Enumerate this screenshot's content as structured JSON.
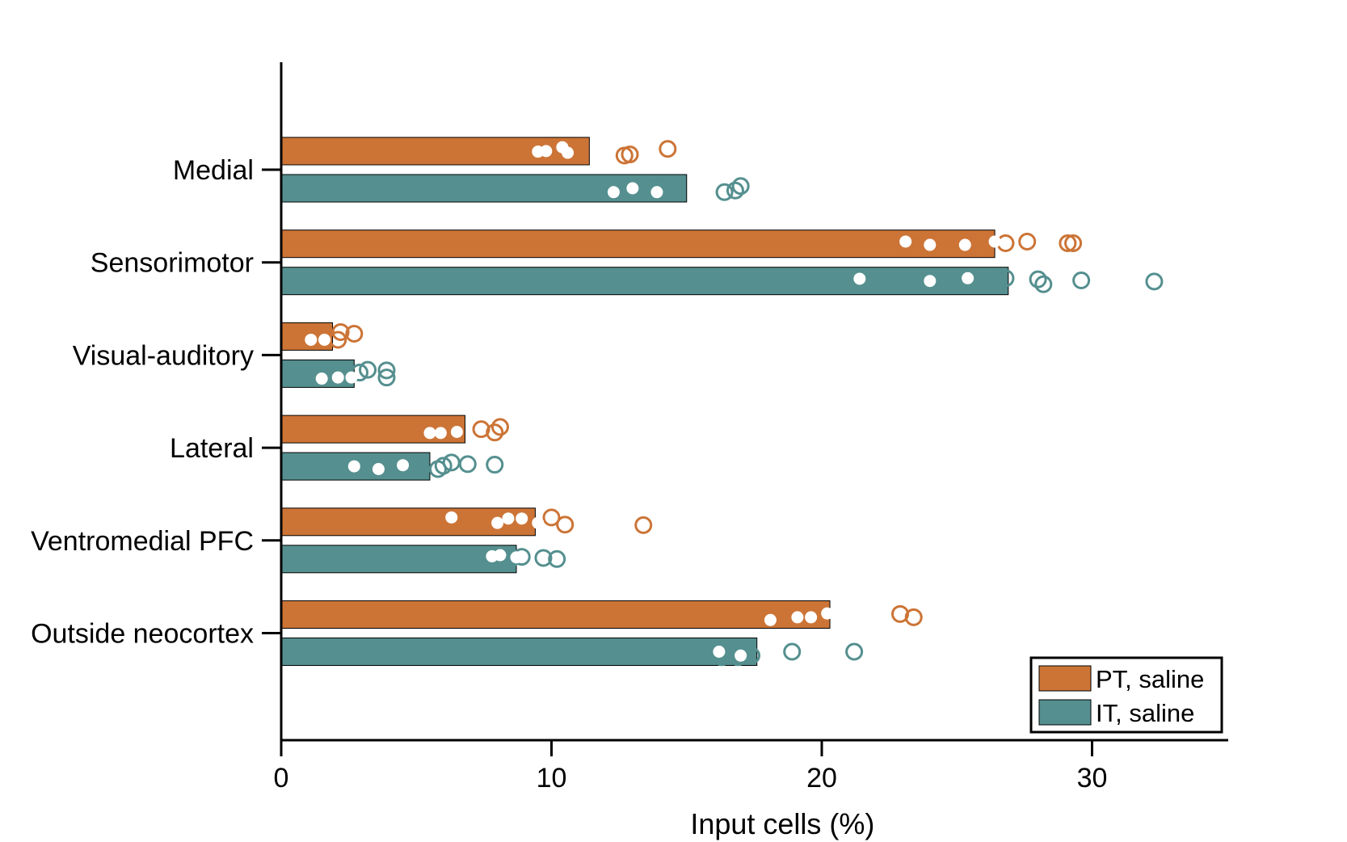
{
  "chart_data": {
    "type": "bar",
    "orientation": "horizontal",
    "xlabel": "Input cells (%)",
    "xlim": [
      0,
      35
    ],
    "xticks": [
      0,
      10,
      20,
      30
    ],
    "grid": false,
    "legend_position": "bottom-right",
    "categories": [
      "Medial",
      "Sensorimotor",
      "Visual-auditory",
      "Lateral",
      "Ventromedial PFC",
      "Outside neocortex"
    ],
    "series": [
      {
        "name": "PT, saline",
        "color": "#cc7436",
        "values": [
          11.4,
          26.4,
          1.9,
          6.8,
          9.4,
          20.3
        ],
        "points": [
          {
            "filled": [
              [
                9.5,
                0.01
              ],
              [
                9.8,
                0.0
              ],
              [
                10.4,
                -0.07
              ],
              [
                10.6,
                0.03
              ]
            ],
            "open": [
              [
                12.7,
                0.08
              ],
              [
                12.9,
                0.06
              ],
              [
                14.3,
                -0.04
              ]
            ]
          },
          {
            "filled": [
              [
                23.1,
                -0.04
              ],
              [
                24.0,
                0.02
              ],
              [
                25.3,
                0.02
              ],
              [
                26.4,
                -0.04
              ]
            ],
            "open": [
              [
                26.8,
                -0.01
              ],
              [
                27.6,
                -0.04
              ],
              [
                29.1,
                -0.01
              ],
              [
                29.3,
                -0.01
              ]
            ]
          },
          {
            "filled": [
              [
                1.1,
                0.06
              ],
              [
                1.6,
                0.06
              ]
            ],
            "open": [
              [
                1.5,
                -0.05
              ],
              [
                2.1,
                0.06
              ],
              [
                2.2,
                -0.08
              ],
              [
                2.7,
                -0.05
              ]
            ]
          },
          {
            "filled": [
              [
                5.5,
                0.07
              ],
              [
                5.9,
                0.07
              ],
              [
                6.5,
                0.05
              ]
            ],
            "open": [
              [
                7.4,
                0.0
              ],
              [
                7.9,
                0.06
              ],
              [
                8.1,
                -0.04
              ]
            ]
          },
          {
            "filled": [
              [
                6.3,
                -0.08
              ],
              [
                8.0,
                0.02
              ],
              [
                8.4,
                -0.06
              ],
              [
                8.9,
                -0.06
              ],
              [
                9.5,
                0.02
              ]
            ],
            "open": [
              [
                10.0,
                -0.08
              ],
              [
                10.5,
                0.05
              ],
              [
                13.4,
                0.06
              ]
            ]
          },
          {
            "filled": [
              [
                18.1,
                0.1
              ],
              [
                19.1,
                0.05
              ],
              [
                19.6,
                0.05
              ],
              [
                20.2,
                -0.02
              ]
            ],
            "open": [
              [
                19.0,
                -0.04
              ],
              [
                22.9,
                -0.01
              ],
              [
                23.4,
                0.05
              ]
            ]
          }
        ]
      },
      {
        "name": "IT, saline",
        "color": "#558f8f",
        "values": [
          15.0,
          26.9,
          2.7,
          5.5,
          8.7,
          17.6
        ],
        "points": [
          {
            "filled": [
              [
                12.3,
                0.07
              ],
              [
                13.0,
                0.0
              ],
              [
                13.9,
                0.07
              ]
            ],
            "open": [
              [
                13.9,
                -0.04
              ],
              [
                16.4,
                0.07
              ],
              [
                16.8,
                0.04
              ],
              [
                17.0,
                -0.04
              ]
            ]
          },
          {
            "filled": [
              [
                21.4,
                -0.04
              ],
              [
                24.0,
                0.0
              ],
              [
                25.4,
                -0.05
              ]
            ],
            "open": [
              [
                26.8,
                -0.05
              ],
              [
                28.0,
                -0.03
              ],
              [
                28.2,
                0.06
              ],
              [
                29.6,
                -0.01
              ],
              [
                32.3,
                0.01
              ]
            ]
          },
          {
            "filled": [
              [
                1.5,
                0.09
              ],
              [
                2.1,
                0.07
              ],
              [
                2.6,
                0.07
              ]
            ],
            "open": [
              [
                1.6,
                0.02
              ],
              [
                2.9,
                -0.02
              ],
              [
                3.2,
                -0.07
              ],
              [
                3.9,
                -0.06
              ],
              [
                3.9,
                0.07
              ]
            ]
          },
          {
            "filled": [
              [
                2.7,
                0.0
              ],
              [
                3.6,
                0.05
              ],
              [
                4.5,
                -0.02
              ]
            ],
            "open": [
              [
                5.8,
                0.05
              ],
              [
                6.0,
                -0.01
              ],
              [
                6.3,
                -0.07
              ],
              [
                6.9,
                -0.04
              ],
              [
                7.9,
                -0.03
              ]
            ]
          },
          {
            "filled": [
              [
                7.8,
                -0.05
              ],
              [
                8.1,
                -0.07
              ],
              [
                8.7,
                -0.03
              ]
            ],
            "open": [
              [
                8.5,
                0.0
              ],
              [
                8.9,
                -0.04
              ],
              [
                9.7,
                -0.02
              ],
              [
                10.2,
                0.0
              ]
            ]
          },
          {
            "filled": [
              [
                16.2,
                0.0
              ],
              [
                17.0,
                0.07
              ]
            ],
            "open": [
              [
                16.3,
                0.1
              ],
              [
                16.9,
                0.1
              ],
              [
                17.4,
                0.07
              ],
              [
                18.9,
                0.0
              ],
              [
                21.2,
                0.0
              ]
            ]
          }
        ]
      }
    ]
  }
}
